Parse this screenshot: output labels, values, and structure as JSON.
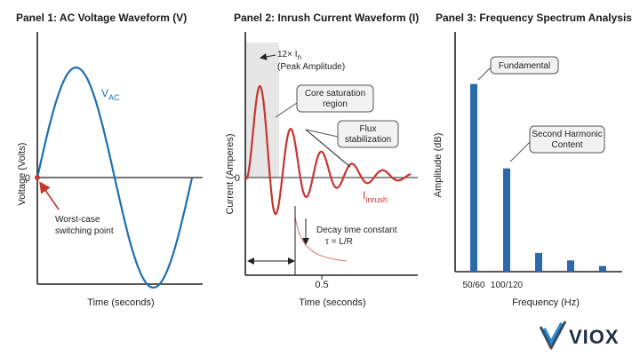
{
  "panel1": {
    "title": "Panel 1: AC Voltage Waveform (V)",
    "ylabel": "Voltage (Volts)",
    "xlabel": "Time (seconds)",
    "zero_label": "0",
    "series_label_main": "V",
    "series_label_sub": "AC",
    "annotation_line1": "Worst-case",
    "annotation_line2": "switching point",
    "wave_color": "#1f6fae"
  },
  "panel2": {
    "title": "Panel 2: Inrush Current Waveform (I)",
    "ylabel": "Current (Amperes)",
    "xlabel": "Time (seconds)",
    "zero_label": "0",
    "x_tick": "0.5",
    "peak_line1_a": "12× I",
    "peak_line1_sub": "n",
    "peak_line2": "(Peak Amplitude)",
    "core_line1": "Core saturation",
    "core_line2": "region",
    "flux_line1": "Flux",
    "flux_line2": "stabilization",
    "series_label_main": "I",
    "series_label_sub": "inrush",
    "decay_line1": "Decay time constant",
    "decay_line2": "τ = L/R",
    "wave_color": "#c8352f"
  },
  "panel3": {
    "title": "Panel 3: Frequency Spectrum Analysis",
    "ylabel": "Amplitude (dB)",
    "xlabel": "Frequency (Hz)",
    "fund_label": "Fundamental",
    "second_line1": "Second Harmonic",
    "second_line2": "Content",
    "bar_color": "#2a6aa8"
  },
  "chart_data": {
    "type": "bar",
    "categories": [
      "50/60",
      "100/120",
      "",
      "",
      ""
    ],
    "values": [
      100,
      55,
      10,
      6,
      3
    ],
    "xlabel": "Frequency (Hz)",
    "ylabel": "Amplitude (dB)",
    "ylim": [
      0,
      105
    ]
  },
  "brand": {
    "name": "VIOX",
    "logo_color": "#1f2f45",
    "accent_color": "#2f8ad6"
  }
}
